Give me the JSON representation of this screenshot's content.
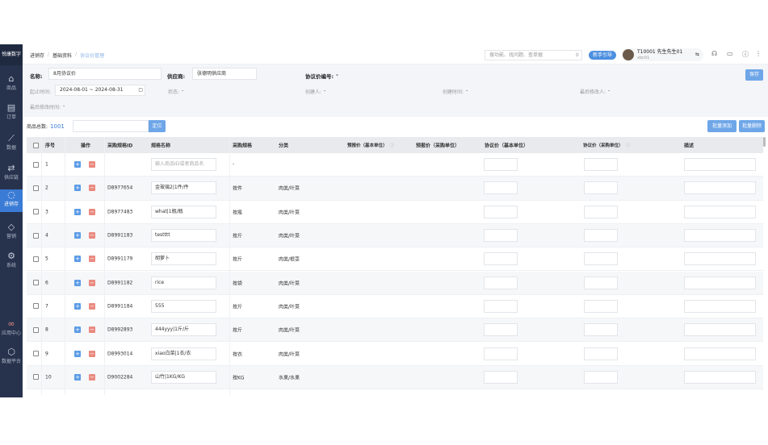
{
  "sidebar": {
    "logo": "悦康数字",
    "items": [
      {
        "label": "商品",
        "icon": "basket-icon"
      },
      {
        "label": "订单",
        "icon": "order-icon"
      },
      {
        "label": "数据",
        "icon": "chart-icon"
      },
      {
        "label": "供应链",
        "icon": "link-icon"
      },
      {
        "label": "进销存",
        "icon": "inventory-icon",
        "active": true
      },
      {
        "label": "营销",
        "icon": "tag-icon"
      },
      {
        "label": "系统",
        "icon": "gear-icon"
      },
      {
        "label": "应用中心",
        "icon": "apps-icon"
      },
      {
        "label": "数据平台",
        "icon": "cube-icon"
      }
    ]
  },
  "header": {
    "breadcrumb": [
      "进销存",
      "基础资料",
      "协议价管理"
    ],
    "search_placeholder": "搜功能、找问题、查单据",
    "guide_button": "新手引导",
    "user_name": "T10001 先生先生01",
    "user_id": "xbc01"
  },
  "info": {
    "name_label": "名称:",
    "name_value": "8月协议价",
    "supplier_label": "供应商:",
    "supplier_value": "张德明供应商",
    "code_label": "协议价编号:",
    "code_value": "-",
    "period_label": "起止时间:",
    "period_value": "2024-08-01 ~ 2024-08-31",
    "status_label": "状态:",
    "status_value": "-",
    "creator_label": "创建人:",
    "creator_value": "-",
    "created_label": "创建时间:",
    "created_value": "-",
    "modifier_label": "最后修改人:",
    "modifier_value": "-",
    "modified_label": "最后修改时间:",
    "modified_value": "-",
    "save_button": "保存"
  },
  "toolbar": {
    "total_label": "商品总数:",
    "total_value": "1001",
    "locate_button": "定位",
    "batch_add": "批量添加",
    "batch_delete": "批量删除"
  },
  "table": {
    "columns": [
      "序号",
      "操作",
      "采购规格ID",
      "规格名称",
      "采购规格",
      "分类",
      "预报价（基本单位）",
      "预报价（采购单位）",
      "协议价（基本单位）",
      "协议价（采购单位）",
      "描述"
    ],
    "name_placeholder": "输入商品ID或者商品名",
    "rows": [
      {
        "no": "1",
        "id": "",
        "name": "",
        "spec": "-",
        "category": ""
      },
      {
        "no": "2",
        "id": "D8977654",
        "name": "金玻璃2|1件/件",
        "spec": "按件",
        "category": "肉类/叶菜"
      },
      {
        "no": "3",
        "id": "D8977483",
        "name": "what|1瓶/瓶",
        "spec": "按瓶",
        "category": "肉类/叶菜"
      },
      {
        "no": "4",
        "id": "D8991183",
        "name": "testttt",
        "spec": "按斤",
        "category": "肉类/叶菜"
      },
      {
        "no": "5",
        "id": "D8991179",
        "name": "胡萝卜",
        "spec": "按斤",
        "category": "肉类/根茎"
      },
      {
        "no": "6",
        "id": "D8991182",
        "name": "rice",
        "spec": "按袋",
        "category": "肉类/叶菜"
      },
      {
        "no": "7",
        "id": "D8991184",
        "name": "555",
        "spec": "按斤",
        "category": "肉类/叶菜"
      },
      {
        "no": "8",
        "id": "D8992893",
        "name": "444yyy|1斤/斤",
        "spec": "按斤",
        "category": "肉类/叶菜"
      },
      {
        "no": "9",
        "id": "D8993014",
        "name": "xiao白菜|1衣/衣",
        "spec": "按衣",
        "category": "肉类/叶菜"
      },
      {
        "no": "10",
        "id": "D9002284",
        "name": "山竹|1KG/KG",
        "spec": "按KG",
        "category": "水果/水果"
      }
    ]
  }
}
